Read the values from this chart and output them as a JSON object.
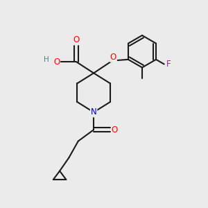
{
  "bg_color": "#ebebeb",
  "bond_color": "#1a1a1a",
  "bond_width": 1.5,
  "atom_colors": {
    "O": "#ff0000",
    "N": "#0000cc",
    "F": "#cc00cc",
    "H": "#4a8080",
    "C": "#1a1a1a"
  },
  "font_size_atom": 8.5,
  "font_size_h": 7.5
}
